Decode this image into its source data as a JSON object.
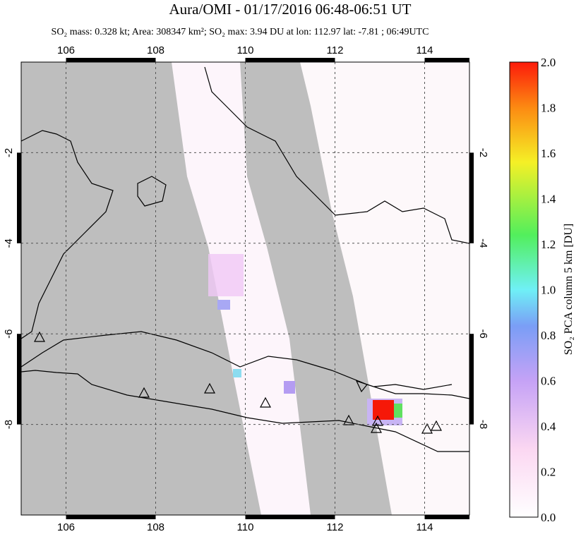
{
  "chart_data": {
    "type": "map",
    "title": "Aura/OMI - 01/17/2016 06:48-06:51 UT",
    "subtitle": "SO₂ mass: 0.328 kt; Area: 308347 km²; SO₂ max: 3.94 DU at lon: 112.97 lat: -7.81 ; 06:49UTC",
    "xlim": [
      105,
      115
    ],
    "xticks": [
      106,
      108,
      110,
      112,
      114
    ],
    "ylim": [
      -10,
      0
    ],
    "yticks": [
      -2,
      -4,
      -6,
      -8
    ],
    "grid": true,
    "colorbar": {
      "label": "SO₂ PCA column 5 km [DU]",
      "clim": [
        0,
        2
      ],
      "ticks": [
        {
          "value": 0,
          "label": "0.0"
        },
        0.2,
        0.4,
        0.6,
        0.8,
        {
          "value": 1,
          "label": "1.0"
        },
        1.2,
        1.4,
        1.6,
        1.8,
        {
          "value": 2,
          "label": "2.0"
        }
      ]
    }
  }
}
